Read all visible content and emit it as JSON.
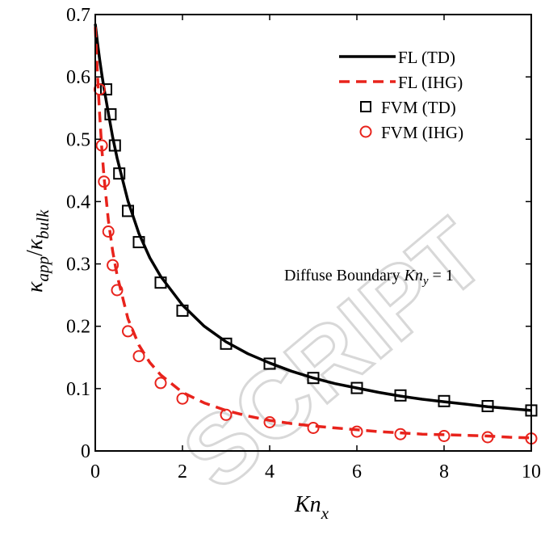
{
  "chart_data": {
    "type": "line",
    "xlim": [
      0,
      10
    ],
    "ylim": [
      0,
      0.7
    ],
    "x_ticks": [
      "0",
      "2",
      "4",
      "6",
      "8",
      "10"
    ],
    "y_ticks": [
      "0",
      "0.1",
      "0.2",
      "0.3",
      "0.4",
      "0.5",
      "0.6",
      "0.7"
    ],
    "xlabel": {
      "main": "Kn",
      "sub": "x"
    },
    "ylabel": {
      "k1": "κ",
      "s1": "app",
      "slash": "/",
      "k2": "κ",
      "s2": "bulk"
    },
    "annotation": {
      "text": "Diffuse Boundary ",
      "math": "Kn",
      "math_sub": "y",
      "math_tail": " = 1"
    },
    "legend_position": "top-right",
    "grid": false,
    "series": [
      {
        "name": "FL (TD)",
        "kind": "line",
        "color": "#000000",
        "dash": "solid",
        "x": [
          0.0,
          0.05,
          0.1,
          0.15,
          0.2,
          0.3,
          0.4,
          0.5,
          0.75,
          1.0,
          1.25,
          1.5,
          2.0,
          2.5,
          3.0,
          3.5,
          4.0,
          4.5,
          5.0,
          5.5,
          6.0,
          6.5,
          7.0,
          7.5,
          8.0,
          8.5,
          9.0,
          9.5,
          10.0
        ],
        "y": [
          0.685,
          0.655,
          0.628,
          0.604,
          0.582,
          0.542,
          0.503,
          0.47,
          0.401,
          0.349,
          0.31,
          0.28,
          0.234,
          0.2,
          0.175,
          0.156,
          0.141,
          0.128,
          0.117,
          0.108,
          0.101,
          0.094,
          0.088,
          0.083,
          0.079,
          0.075,
          0.071,
          0.068,
          0.065
        ]
      },
      {
        "name": "FL (IHG)",
        "kind": "line",
        "color": "#e8231c",
        "dash": "dashed",
        "x": [
          0.0,
          0.05,
          0.1,
          0.15,
          0.2,
          0.3,
          0.4,
          0.5,
          0.75,
          1.0,
          1.25,
          1.5,
          2.0,
          2.5,
          3.0,
          3.5,
          4.0,
          4.5,
          5.0,
          5.5,
          6.0,
          6.5,
          7.0,
          7.5,
          8.0,
          8.5,
          9.0,
          9.5,
          10.0
        ],
        "y": [
          0.68,
          0.605,
          0.54,
          0.485,
          0.44,
          0.37,
          0.32,
          0.282,
          0.212,
          0.17,
          0.142,
          0.122,
          0.094,
          0.077,
          0.065,
          0.056,
          0.049,
          0.044,
          0.04,
          0.037,
          0.034,
          0.031,
          0.029,
          0.027,
          0.026,
          0.025,
          0.024,
          0.022,
          0.021
        ]
      },
      {
        "name": "FVM (TD)",
        "kind": "marker",
        "marker": "square",
        "color": "#000000",
        "x": [
          0.25,
          0.35,
          0.45,
          0.55,
          0.75,
          1.0,
          1.5,
          2.0,
          3.0,
          4.0,
          5.0,
          6.0,
          7.0,
          8.0,
          9.0,
          10.0
        ],
        "y": [
          0.58,
          0.54,
          0.49,
          0.445,
          0.385,
          0.335,
          0.27,
          0.225,
          0.172,
          0.14,
          0.117,
          0.101,
          0.089,
          0.08,
          0.072,
          0.065
        ]
      },
      {
        "name": "FVM (IHG)",
        "kind": "marker",
        "marker": "circle",
        "color": "#e8231c",
        "x": [
          0.1,
          0.15,
          0.2,
          0.3,
          0.4,
          0.5,
          0.75,
          1.0,
          1.5,
          2.0,
          3.0,
          4.0,
          5.0,
          6.0,
          7.0,
          8.0,
          9.0,
          10.0
        ],
        "y": [
          0.58,
          0.49,
          0.432,
          0.352,
          0.298,
          0.258,
          0.192,
          0.152,
          0.109,
          0.084,
          0.058,
          0.046,
          0.037,
          0.031,
          0.027,
          0.024,
          0.022,
          0.02
        ]
      }
    ]
  },
  "watermark": "SCRIPT"
}
